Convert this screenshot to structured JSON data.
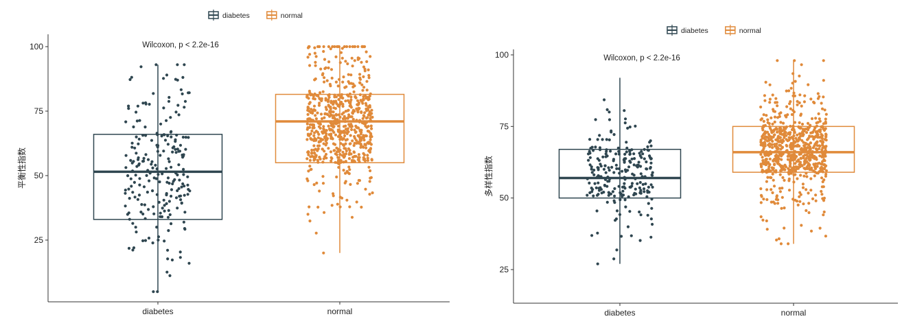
{
  "colors": {
    "diabetes": "#2f4650",
    "normal": "#e08a3a",
    "axis": "#333333",
    "text": "#222222"
  },
  "chart_data": [
    {
      "type": "box",
      "ylabel": "平衡性指数",
      "xlabel": "",
      "categories": [
        "diabetes",
        "normal"
      ],
      "legend": {
        "position": "top",
        "entries": [
          "diabetes",
          "normal"
        ]
      },
      "annotation": "Wilcoxon, p < 2.2e-16",
      "yticks": [
        25,
        50,
        75,
        100
      ],
      "ylim": [
        0,
        105
      ],
      "grid": false,
      "boxes": [
        {
          "group": "diabetes",
          "q1": 33,
          "median": 51.5,
          "q3": 66,
          "whisker_low": 5,
          "whisker_high": 93,
          "n_points": 230
        },
        {
          "group": "normal",
          "q1": 55,
          "median": 71,
          "q3": 81.5,
          "whisker_low": 20,
          "whisker_high": 100,
          "n_points": 700
        }
      ]
    },
    {
      "type": "box",
      "ylabel": "多样性指数",
      "xlabel": "",
      "categories": [
        "diabetes",
        "normal"
      ],
      "legend": {
        "position": "top",
        "entries": [
          "diabetes",
          "normal"
        ]
      },
      "annotation": "Wilcoxon, p < 2.2e-16",
      "yticks": [
        25,
        50,
        75,
        100
      ],
      "ylim": [
        12,
        102
      ],
      "grid": false,
      "boxes": [
        {
          "group": "diabetes",
          "q1": 50,
          "median": 57,
          "q3": 67,
          "whisker_low": 27,
          "whisker_high": 92,
          "n_points": 240
        },
        {
          "group": "normal",
          "q1": 59,
          "median": 66,
          "q3": 75,
          "whisker_low": 34,
          "whisker_high": 98,
          "n_points": 750
        }
      ]
    }
  ]
}
